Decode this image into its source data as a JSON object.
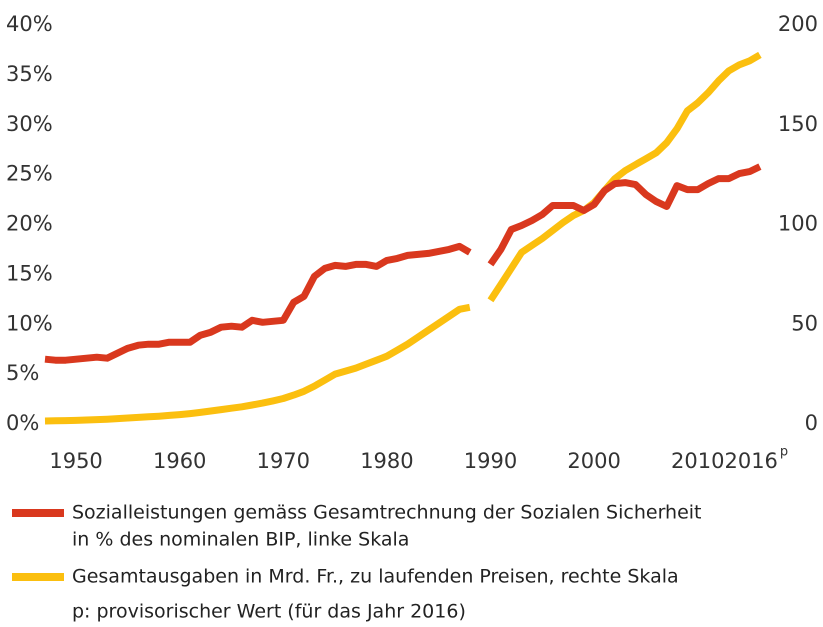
{
  "chart_data": {
    "type": "line",
    "x": [
      1947,
      1948,
      1949,
      1950,
      1951,
      1952,
      1953,
      1954,
      1955,
      1956,
      1957,
      1958,
      1959,
      1960,
      1961,
      1962,
      1963,
      1964,
      1965,
      1966,
      1967,
      1968,
      1969,
      1970,
      1971,
      1972,
      1973,
      1974,
      1975,
      1976,
      1977,
      1978,
      1979,
      1980,
      1981,
      1982,
      1983,
      1984,
      1985,
      1986,
      1987,
      1988,
      1989,
      1990,
      1991,
      1992,
      1993,
      1994,
      1995,
      1996,
      1997,
      1998,
      1999,
      2000,
      2001,
      2002,
      2003,
      2004,
      2005,
      2006,
      2007,
      2008,
      2009,
      2010,
      2011,
      2012,
      2013,
      2014,
      2015,
      2016
    ],
    "series": [
      {
        "name": "Sozialleistungen gemäss Gesamtrechnung der Sozialen Sicherheit in % des nominalen BIP, linke Skala",
        "color": "#d9381e",
        "axis": "y",
        "values": [
          6.5,
          6.4,
          6.4,
          6.5,
          6.6,
          6.7,
          6.6,
          7.1,
          7.6,
          7.9,
          8.0,
          8.0,
          8.2,
          8.2,
          8.2,
          8.9,
          9.2,
          9.7,
          9.8,
          9.7,
          10.4,
          10.2,
          10.3,
          10.4,
          12.2,
          12.8,
          14.8,
          15.6,
          15.9,
          15.8,
          16.0,
          16.0,
          15.8,
          16.4,
          16.6,
          16.9,
          17.0,
          17.1,
          17.3,
          17.5,
          17.8,
          17.2,
          null,
          16.0,
          17.5,
          19.5,
          19.9,
          20.4,
          21.0,
          21.9,
          21.9,
          21.9,
          21.4,
          22.0,
          23.4,
          24.1,
          24.2,
          24.0,
          23.0,
          22.3,
          21.8,
          23.9,
          23.5,
          23.5,
          24.1,
          24.6,
          24.6,
          25.1,
          25.3,
          25.8
        ]
      },
      {
        "name": "Gesamtausgaben in Mrd. Fr., zu laufenden Preisen, rechte Skala",
        "color": "#fbbf0f",
        "axis": "y2",
        "values": [
          1.5,
          1.6,
          1.7,
          1.8,
          2.0,
          2.2,
          2.4,
          2.7,
          3.0,
          3.3,
          3.6,
          3.9,
          4.3,
          4.7,
          5.2,
          5.8,
          6.5,
          7.2,
          7.9,
          8.6,
          9.5,
          10.5,
          11.6,
          12.8,
          14.5,
          16.4,
          19.0,
          22.0,
          25.0,
          26.5,
          28.0,
          30.0,
          32.0,
          34.0,
          37.0,
          40.0,
          43.5,
          47.0,
          50.5,
          54.0,
          57.5,
          58.5,
          null,
          62.0,
          70.0,
          78.0,
          86.0,
          89.5,
          93.0,
          97.0,
          101.0,
          104.5,
          107.0,
          111.0,
          117.0,
          123.0,
          127.0,
          130.0,
          133.0,
          136.0,
          141.0,
          148.0,
          157.0,
          161.0,
          166.0,
          172.0,
          177.0,
          180.0,
          182.0,
          185.0
        ]
      }
    ],
    "xlim": [
      1947,
      2016.2
    ],
    "xticks": [
      1950,
      1960,
      1970,
      1980,
      1990,
      2000,
      2010,
      2016
    ],
    "xtick_superscript": "p",
    "ylim": [
      0,
      40
    ],
    "yticks": [
      {
        "value": 0,
        "label": "0%"
      },
      {
        "value": 5,
        "label": "5%"
      },
      {
        "value": 10,
        "label": "10%"
      },
      {
        "value": 15,
        "label": "15%"
      },
      {
        "value": 20,
        "label": "20%"
      },
      {
        "value": 25,
        "label": "25%"
      },
      {
        "value": 30,
        "label": "30%"
      },
      {
        "value": 35,
        "label": "35%"
      },
      {
        "value": 40,
        "label": "40%"
      }
    ],
    "y2lim": [
      0,
      200
    ],
    "y2ticks": [
      0,
      50,
      100,
      150,
      200
    ],
    "legend_lines": [
      [
        "Sozialleistungen gemäss Gesamtrechnung der Sozialen Sicherheit",
        "in % des nominalen BIP, linke Skala"
      ],
      [
        "Gesamtausgaben in Mrd. Fr., zu laufenden Preisen, rechte Skala"
      ]
    ],
    "footnote": "p: provisorischer Wert (für das Jahr 2016)"
  }
}
